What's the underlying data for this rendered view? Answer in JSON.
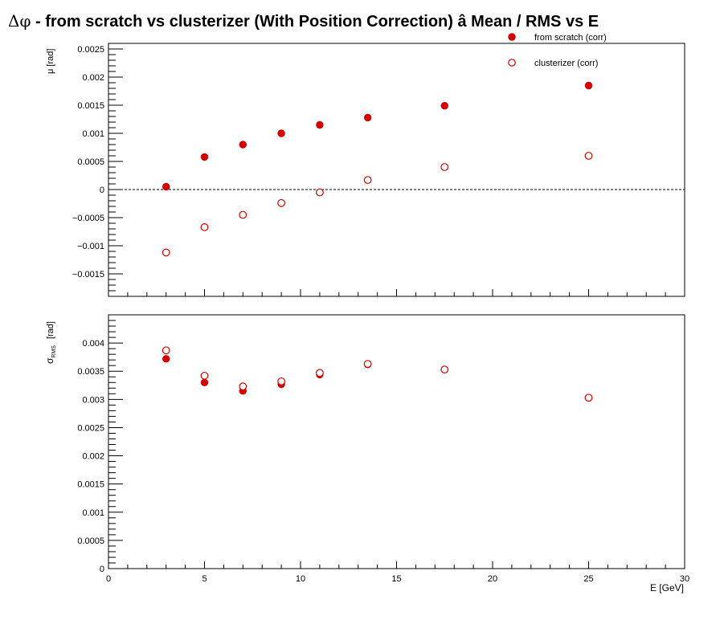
{
  "title": {
    "symbol": "Δφ",
    "text": "  -  from scratch vs clusterizer  (With Position Correction)  â  Mean / RMS vs E"
  },
  "chart_data": [
    {
      "type": "scatter",
      "panel": "mean",
      "ylabel": "μ  [rad]",
      "ylim": [
        -0.0019,
        0.0026
      ],
      "y_ticks": [
        -0.0015,
        -0.001,
        -0.0005,
        0,
        0.0005,
        0.001,
        0.0015,
        0.002,
        0.0025
      ],
      "y_tick_labels": [
        "−0.0015",
        "−0.001",
        "−0.0005",
        "0",
        "0.0005",
        "0.001",
        "0.0015",
        "0.002",
        "0.0025"
      ],
      "reference_line_y": 0,
      "legend_position": "top-right",
      "x": [
        3,
        5,
        7,
        9,
        11,
        13.5,
        17.5,
        25
      ],
      "series": [
        {
          "name": "from scratch (corr)",
          "marker": "filled-circle",
          "color": "#d40000",
          "values": [
            5e-05,
            0.00058,
            0.0008,
            0.001,
            0.00115,
            0.00128,
            0.00149,
            0.00185
          ]
        },
        {
          "name": "clusterizer (corr)",
          "marker": "open-circle",
          "color": "#d40000",
          "values": [
            -0.00112,
            -0.00067,
            -0.00045,
            -0.00024,
            -5e-05,
            0.00017,
            0.0004,
            0.0006
          ]
        }
      ]
    },
    {
      "type": "scatter",
      "panel": "rms",
      "ylabel_main": "σ",
      "ylabel_sub": "RMS",
      "ylabel_unit": "[rad]",
      "xlabel": "E  [GeV]",
      "xlim": [
        0,
        30
      ],
      "x_ticks": [
        0,
        5,
        10,
        15,
        20,
        25,
        30
      ],
      "x_tick_labels": [
        "0",
        "5",
        "10",
        "15",
        "20",
        "25",
        "30"
      ],
      "ylim": [
        0,
        0.0045
      ],
      "y_ticks": [
        0,
        0.0005,
        0.001,
        0.0015,
        0.002,
        0.0025,
        0.003,
        0.0035,
        0.004
      ],
      "y_tick_labels": [
        "0",
        "0.0005",
        "0.001",
        "0.0015",
        "0.002",
        "0.0025",
        "0.003",
        "0.0035",
        "0.004"
      ],
      "x": [
        3,
        5,
        7,
        9,
        11,
        13.5,
        17.5,
        25
      ],
      "series": [
        {
          "name": "from scratch (corr)",
          "marker": "filled-circle",
          "color": "#d40000",
          "values": [
            0.00372,
            0.0033,
            0.00315,
            0.00327,
            0.00344,
            0.00362,
            0.00353,
            0.00303
          ]
        },
        {
          "name": "clusterizer (corr)",
          "marker": "open-circle",
          "color": "#d40000",
          "values": [
            0.00387,
            0.00342,
            0.00323,
            0.00332,
            0.00347,
            0.00363,
            0.00353,
            0.00303
          ]
        }
      ]
    }
  ]
}
